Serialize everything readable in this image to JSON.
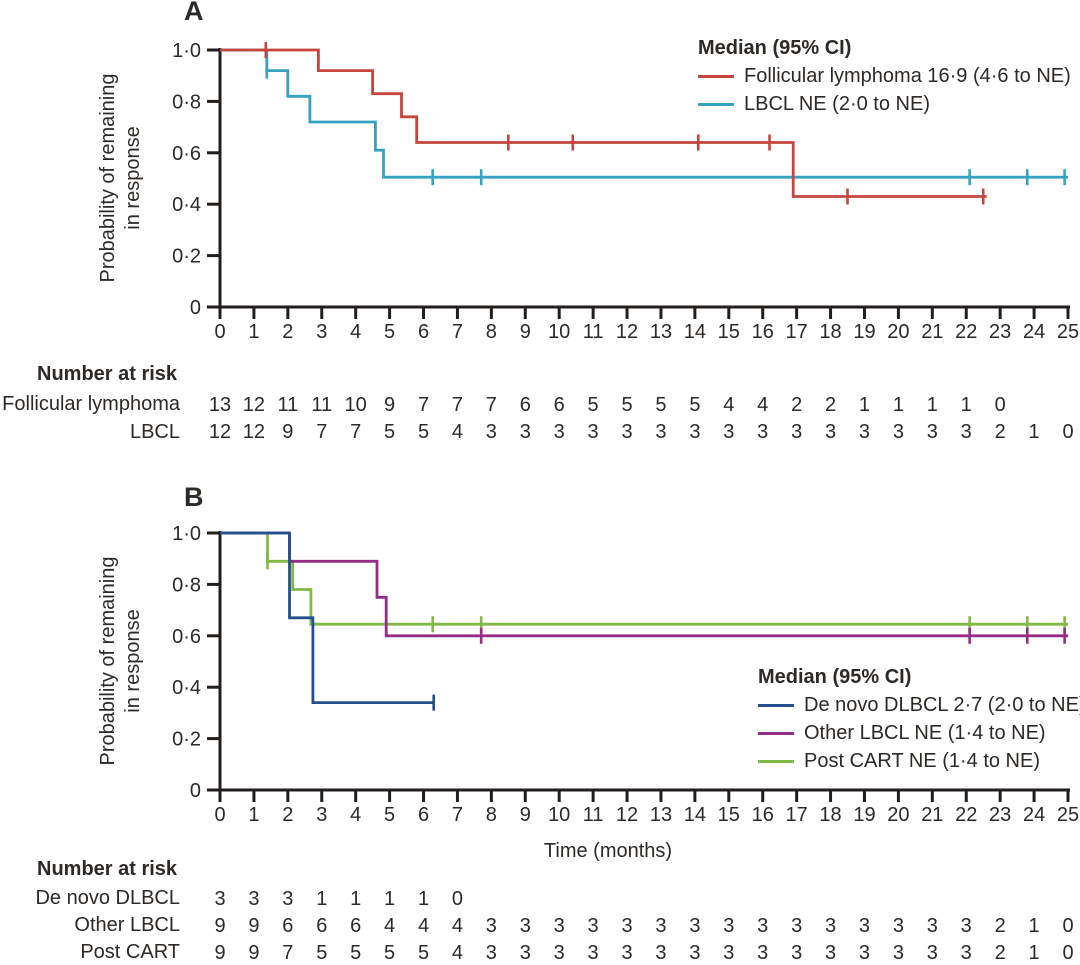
{
  "figure": {
    "background": "#ffffff",
    "text_color": "#2d2926",
    "axis_color": "#221e1c"
  },
  "chart_data": [
    {
      "type": "line",
      "panel": "A",
      "title": "",
      "xlabel": "",
      "ylabel": "Probability of remaining in response",
      "ylabel_lines": [
        "Probability of remaining",
        "in response"
      ],
      "xlim": [
        0,
        25
      ],
      "ylim": [
        0,
        1
      ],
      "grid": false,
      "x_ticks": [
        0,
        1,
        2,
        3,
        4,
        5,
        6,
        7,
        8,
        9,
        10,
        11,
        12,
        13,
        14,
        15,
        16,
        17,
        18,
        19,
        20,
        21,
        22,
        23,
        24,
        25
      ],
      "y_ticks": [
        {
          "v": 1.0,
          "label": "1·0"
        },
        {
          "v": 0.8,
          "label": "0·8"
        },
        {
          "v": 0.6,
          "label": "0·6"
        },
        {
          "v": 0.4,
          "label": "0·4"
        },
        {
          "v": 0.2,
          "label": "0·2"
        },
        {
          "v": 0.0,
          "label": "0"
        }
      ],
      "legend_title": "Median (95% CI)",
      "legend_position": "top-right",
      "series": [
        {
          "name": "Follicular lymphoma",
          "median_label": "Follicular lymphoma 16·9 (4·6 to NE)",
          "color": "#c6463d",
          "steps": [
            [
              0,
              1.0
            ],
            [
              2.9,
              1.0
            ],
            [
              2.9,
              0.92
            ],
            [
              4.5,
              0.92
            ],
            [
              4.5,
              0.83
            ],
            [
              5.35,
              0.83
            ],
            [
              5.35,
              0.74
            ],
            [
              5.8,
              0.74
            ],
            [
              5.8,
              0.64
            ],
            [
              16.9,
              0.64
            ],
            [
              16.9,
              0.43
            ],
            [
              22.6,
              0.43
            ]
          ],
          "censors": [
            [
              1.35,
              1.0
            ],
            [
              8.5,
              0.64
            ],
            [
              10.4,
              0.64
            ],
            [
              14.1,
              0.64
            ],
            [
              16.2,
              0.64
            ],
            [
              18.5,
              0.43
            ],
            [
              22.5,
              0.43
            ]
          ]
        },
        {
          "name": "LBCL",
          "median_label": "LBCL  NE (2·0 to NE)",
          "color": "#35a2c1",
          "steps": [
            [
              0,
              1.0
            ],
            [
              1.38,
              1.0
            ],
            [
              1.38,
              0.92
            ],
            [
              2.0,
              0.92
            ],
            [
              2.0,
              0.82
            ],
            [
              2.65,
              0.82
            ],
            [
              2.65,
              0.72
            ],
            [
              4.58,
              0.72
            ],
            [
              4.58,
              0.61
            ],
            [
              4.82,
              0.61
            ],
            [
              4.82,
              0.505
            ],
            [
              25,
              0.505
            ]
          ],
          "censors": [
            [
              1.38,
              0.92
            ],
            [
              6.27,
              0.505
            ],
            [
              7.7,
              0.505
            ],
            [
              22.1,
              0.505
            ],
            [
              23.8,
              0.505
            ],
            [
              24.9,
              0.505
            ]
          ]
        }
      ],
      "risk_table": {
        "title": "Number at risk",
        "rows": [
          {
            "label": "Follicular lymphoma",
            "values": [
              13,
              12,
              11,
              11,
              10,
              9,
              7,
              7,
              7,
              6,
              6,
              5,
              5,
              5,
              5,
              4,
              4,
              2,
              2,
              1,
              1,
              1,
              1,
              0
            ]
          },
          {
            "label": "LBCL",
            "values": [
              12,
              12,
              9,
              7,
              7,
              5,
              5,
              4,
              3,
              3,
              3,
              3,
              3,
              3,
              3,
              3,
              3,
              3,
              3,
              3,
              3,
              3,
              3,
              2,
              1,
              0
            ]
          }
        ]
      }
    },
    {
      "type": "line",
      "panel": "B",
      "title": "",
      "xlabel": "Time (months)",
      "ylabel": "Probability of remaining in response",
      "ylabel_lines": [
        "Probability of remaining",
        "in response"
      ],
      "xlim": [
        0,
        25
      ],
      "ylim": [
        0,
        1
      ],
      "grid": false,
      "x_ticks": [
        0,
        1,
        2,
        3,
        4,
        5,
        6,
        7,
        8,
        9,
        10,
        11,
        12,
        13,
        14,
        15,
        16,
        17,
        18,
        19,
        20,
        21,
        22,
        23,
        24,
        25
      ],
      "y_ticks": [
        {
          "v": 1.0,
          "label": "1·0"
        },
        {
          "v": 0.8,
          "label": "0·8"
        },
        {
          "v": 0.6,
          "label": "0·6"
        },
        {
          "v": 0.4,
          "label": "0·4"
        },
        {
          "v": 0.2,
          "label": "0·2"
        },
        {
          "v": 0.0,
          "label": "0"
        }
      ],
      "legend_title": "Median (95% CI)",
      "legend_position": "middle-right",
      "series": [
        {
          "name": "De novo DLBCL",
          "median_label": "De novo DLBCL 2·7 (2·0 to NE)",
          "color": "#24508f",
          "steps": [
            [
              0,
              1.0
            ],
            [
              2.05,
              1.0
            ],
            [
              2.05,
              0.67
            ],
            [
              2.74,
              0.67
            ],
            [
              2.74,
              0.34
            ],
            [
              6.3,
              0.34
            ]
          ],
          "censors": [
            [
              6.3,
              0.34
            ]
          ]
        },
        {
          "name": "Other LBCL",
          "median_label": "Other LBCL  NE (1·4 to NE)",
          "color": "#952d87",
          "steps": [
            [
              0,
              1.0
            ],
            [
              2.05,
              1.0
            ],
            [
              2.05,
              0.89
            ],
            [
              4.63,
              0.89
            ],
            [
              4.63,
              0.75
            ],
            [
              4.9,
              0.75
            ],
            [
              4.9,
              0.6
            ],
            [
              25,
              0.6
            ]
          ],
          "censors": [
            [
              7.7,
              0.6
            ],
            [
              22.1,
              0.6
            ],
            [
              23.8,
              0.6
            ],
            [
              24.9,
              0.6
            ]
          ]
        },
        {
          "name": "Post CART",
          "median_label": "Post CART NE (1·4 to NE)",
          "color": "#82b846",
          "steps": [
            [
              0,
              1.0
            ],
            [
              1.4,
              1.0
            ],
            [
              1.4,
              0.89
            ],
            [
              2.14,
              0.89
            ],
            [
              2.14,
              0.78
            ],
            [
              2.68,
              0.78
            ],
            [
              2.68,
              0.645
            ],
            [
              25,
              0.645
            ]
          ],
          "censors": [
            [
              1.4,
              0.89
            ],
            [
              6.27,
              0.645
            ],
            [
              7.7,
              0.645
            ],
            [
              22.1,
              0.645
            ],
            [
              23.8,
              0.645
            ],
            [
              24.9,
              0.645
            ]
          ]
        }
      ],
      "risk_table": {
        "title": "Number at risk",
        "rows": [
          {
            "label": "De novo DLBCL",
            "values": [
              3,
              3,
              3,
              1,
              1,
              1,
              1,
              0
            ]
          },
          {
            "label": "Other LBCL",
            "values": [
              9,
              9,
              6,
              6,
              6,
              4,
              4,
              4,
              3,
              3,
              3,
              3,
              3,
              3,
              3,
              3,
              3,
              3,
              3,
              3,
              3,
              3,
              3,
              2,
              1,
              0
            ]
          },
          {
            "label": "Post CART",
            "values": [
              9,
              9,
              7,
              5,
              5,
              5,
              5,
              4,
              3,
              3,
              3,
              3,
              3,
              3,
              3,
              3,
              3,
              3,
              3,
              3,
              3,
              3,
              3,
              2,
              1,
              0
            ]
          }
        ]
      }
    }
  ]
}
